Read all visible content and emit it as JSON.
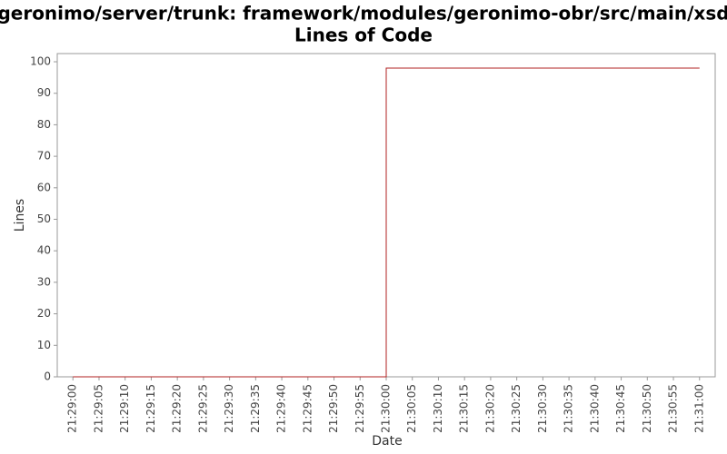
{
  "chart_data": {
    "type": "line",
    "title": "/geronimo/server/trunk: framework/modules/geronimo-obr/src/main/xsd/",
    "subtitle": "Lines of Code",
    "x_label": "Date",
    "y_label": "Lines",
    "x": [
      "21:29:00",
      "21:30:00",
      "21:30:00",
      "21:31:00"
    ],
    "series": [
      {
        "name": "Lines",
        "color": "#b22222",
        "values": [
          0,
          0,
          98,
          98
        ]
      }
    ],
    "xlim": [
      "21:28:57",
      "21:31:03"
    ],
    "xticks": [
      "21:29:00",
      "21:29:05",
      "21:29:10",
      "21:29:15",
      "21:29:20",
      "21:29:25",
      "21:29:30",
      "21:29:35",
      "21:29:40",
      "21:29:45",
      "21:29:50",
      "21:29:55",
      "21:30:00",
      "21:30:05",
      "21:30:10",
      "21:30:15",
      "21:30:20",
      "21:30:25",
      "21:30:30",
      "21:30:35",
      "21:30:40",
      "21:30:45",
      "21:30:50",
      "21:30:55",
      "21:31:00"
    ],
    "ylim": [
      0,
      102.6
    ],
    "yticks": [
      0,
      10,
      20,
      30,
      40,
      50,
      60,
      70,
      80,
      90,
      100
    ],
    "grid": false
  }
}
